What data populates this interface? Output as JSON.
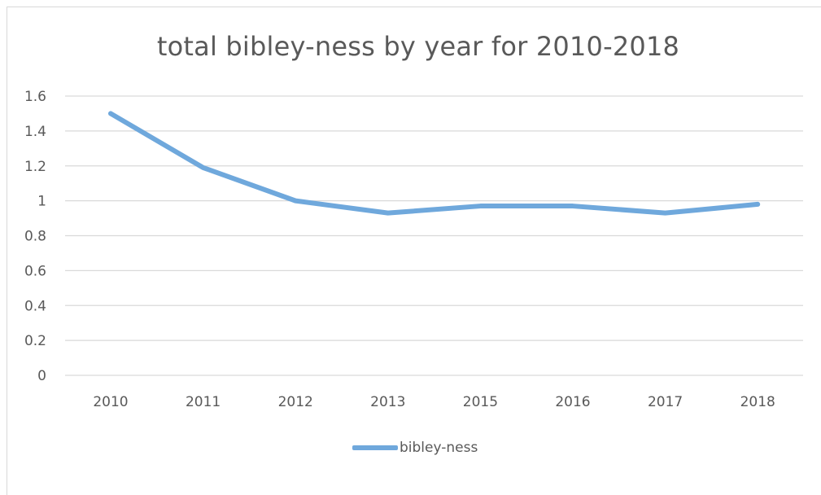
{
  "chart_data": {
    "type": "line",
    "title": "total bibley-ness by year for 2010-2018",
    "xlabel": "",
    "ylabel": "",
    "categories": [
      "2010",
      "2011",
      "2012",
      "2013",
      "2015",
      "2016",
      "2017",
      "2018"
    ],
    "series": [
      {
        "name": "bibley-ness",
        "values": [
          1.5,
          1.19,
          1.0,
          0.93,
          0.97,
          0.97,
          0.93,
          0.98
        ],
        "color": "#6fa8dc"
      }
    ],
    "ylim": [
      0,
      1.6
    ],
    "yticks": [
      "0",
      "0.2",
      "0.4",
      "0.6",
      "0.8",
      "1",
      "1.2",
      "1.4",
      "1.6"
    ],
    "grid": true,
    "legend_position": "bottom"
  }
}
